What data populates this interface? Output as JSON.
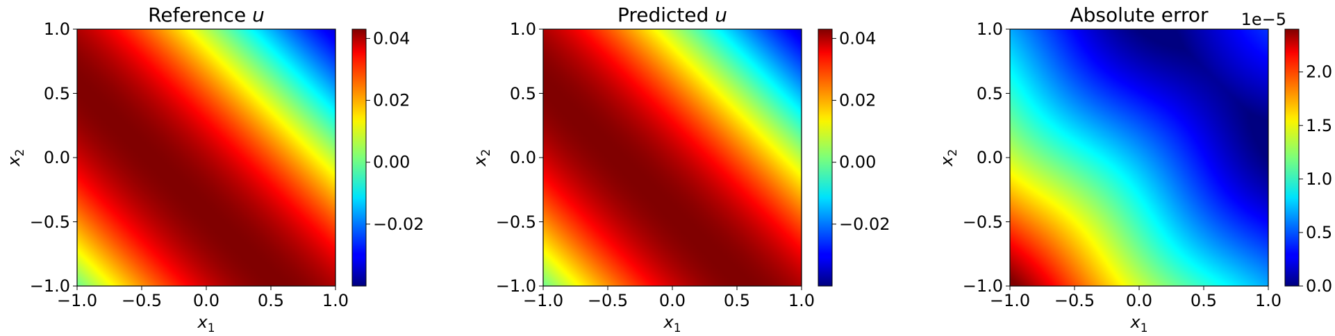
{
  "chart_data": [
    {
      "type": "heatmap",
      "title": "Reference u",
      "title_prefix": "Reference ",
      "title_var": "u",
      "xlabel": "x1",
      "ylabel": "x2",
      "xlim": [
        -1.0,
        1.0
      ],
      "ylim": [
        -1.0,
        1.0
      ],
      "xticks": [
        "−1.0",
        "−0.5",
        "0.0",
        "0.5",
        "1.0"
      ],
      "yticks": [
        "−1.0",
        "−0.5",
        "0.0",
        "0.5",
        "1.0"
      ],
      "colormap": "jet",
      "field": "u = A·sin(x1 + x2 + 2)",
      "amplitude": 0.043,
      "color_range": [
        -0.04,
        0.043
      ],
      "colorbar_ticks": [
        {
          "value": -0.02,
          "label": "−0.02"
        },
        {
          "value": 0.0,
          "label": "0.00"
        },
        {
          "value": 0.02,
          "label": "0.02"
        },
        {
          "value": 0.04,
          "label": "0.04"
        }
      ],
      "colorbar_offset": ""
    },
    {
      "type": "heatmap",
      "title": "Predicted u",
      "title_prefix": "Predicted ",
      "title_var": "u",
      "xlabel": "x1",
      "ylabel": "x2",
      "xlim": [
        -1.0,
        1.0
      ],
      "ylim": [
        -1.0,
        1.0
      ],
      "xticks": [
        "−1.0",
        "−0.5",
        "0.0",
        "0.5",
        "1.0"
      ],
      "yticks": [
        "−1.0",
        "−0.5",
        "0.0",
        "0.5",
        "1.0"
      ],
      "colormap": "jet",
      "field": "u = A·sin(x1 + x2 + 2)",
      "amplitude": 0.043,
      "color_range": [
        -0.04,
        0.043
      ],
      "colorbar_ticks": [
        {
          "value": -0.02,
          "label": "−0.02"
        },
        {
          "value": 0.0,
          "label": "0.00"
        },
        {
          "value": 0.02,
          "label": "0.02"
        },
        {
          "value": 0.04,
          "label": "0.04"
        }
      ],
      "colorbar_offset": ""
    },
    {
      "type": "heatmap",
      "title": "Absolute error",
      "title_prefix": "Absolute error",
      "title_var": "",
      "xlabel": "x1",
      "ylabel": "x2",
      "xlim": [
        -1.0,
        1.0
      ],
      "ylim": [
        -1.0,
        1.0
      ],
      "xticks": [
        "−1.0",
        "−0.5",
        "0.0",
        "0.5",
        "1.0"
      ],
      "yticks": [
        "−1.0",
        "−0.5",
        "0.0",
        "0.5",
        "1.0"
      ],
      "colormap": "jet",
      "field": "|error|, zero near x1 + x2 = 1.2, maximum 2.4e-5 at (-1, -1)",
      "error_max": 2.4e-05,
      "color_range": [
        0.0,
        2.4e-05
      ],
      "colorbar_ticks": [
        {
          "value": 0.0,
          "label": "0.0"
        },
        {
          "value": 5e-06,
          "label": "0.5"
        },
        {
          "value": 1e-05,
          "label": "1.0"
        },
        {
          "value": 1.5e-05,
          "label": "1.5"
        },
        {
          "value": 2e-05,
          "label": "2.0"
        }
      ],
      "colorbar_offset": "1e−5"
    }
  ]
}
